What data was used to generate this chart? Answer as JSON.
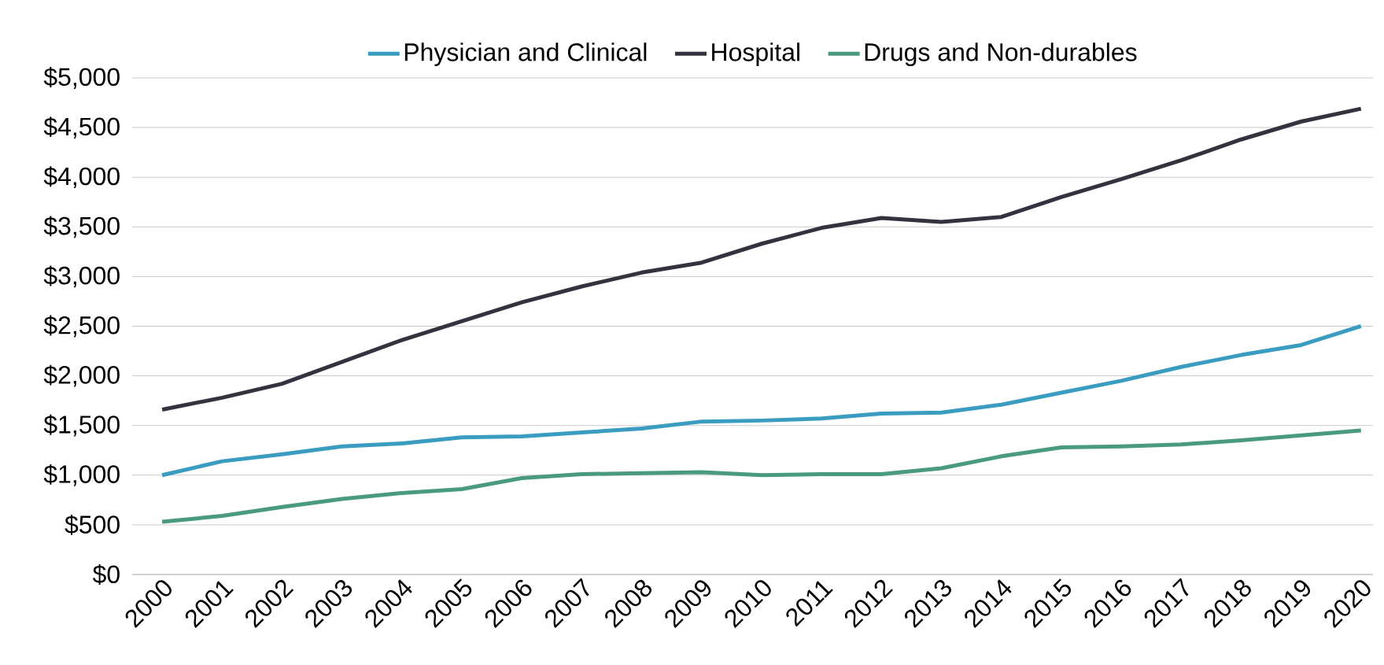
{
  "chart_data": {
    "type": "line",
    "categories": [
      "2000",
      "2001",
      "2002",
      "2003",
      "2004",
      "2005",
      "2006",
      "2007",
      "2008",
      "2009",
      "2010",
      "2011",
      "2012",
      "2013",
      "2014",
      "2015",
      "2016",
      "2017",
      "2018",
      "2019",
      "2020"
    ],
    "series": [
      {
        "name": "Physician and Clinical",
        "color": "#3a9cc0",
        "values": [
          1000,
          1140,
          1210,
          1290,
          1320,
          1380,
          1390,
          1430,
          1470,
          1540,
          1550,
          1570,
          1620,
          1630,
          1710,
          1830,
          1950,
          2090,
          2210,
          2310,
          2500
        ]
      },
      {
        "name": "Hospital",
        "color": "#35323f",
        "values": [
          1660,
          1780,
          1920,
          2140,
          2360,
          2550,
          2740,
          2900,
          3040,
          3140,
          3330,
          3490,
          3590,
          3550,
          3600,
          3800,
          3980,
          4170,
          4380,
          4560,
          4690
        ]
      },
      {
        "name": "Drugs and Non-durables",
        "color": "#4a9a80",
        "values": [
          530,
          590,
          680,
          760,
          820,
          860,
          970,
          1010,
          1020,
          1030,
          1000,
          1010,
          1010,
          1070,
          1190,
          1280,
          1290,
          1310,
          1350,
          1400,
          1450
        ]
      }
    ],
    "ylim": [
      0,
      5000
    ],
    "yticks": [
      {
        "value": 0,
        "label": "$0"
      },
      {
        "value": 500,
        "label": "$500"
      },
      {
        "value": 1000,
        "label": "$1,000"
      },
      {
        "value": 1500,
        "label": "$1,500"
      },
      {
        "value": 2000,
        "label": "$2,000"
      },
      {
        "value": 2500,
        "label": "$2,500"
      },
      {
        "value": 3000,
        "label": "$3,000"
      },
      {
        "value": 3500,
        "label": "$3,500"
      },
      {
        "value": 4000,
        "label": "$4,000"
      },
      {
        "value": 4500,
        "label": "$4,500"
      },
      {
        "value": 5000,
        "label": "$5,000"
      }
    ],
    "grid": "y",
    "legend": "top",
    "marker": "none",
    "line_style": "solid"
  }
}
